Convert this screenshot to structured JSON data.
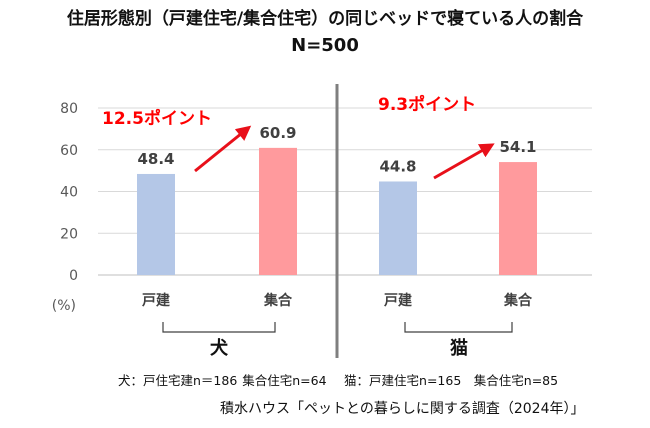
{
  "title_line1": "住居形態別（戸建住宅/集合住宅）の同じベッドで寝ている人の割合",
  "title_line2": "N=500",
  "chart_data": {
    "type": "bar",
    "ylim": [
      0,
      80
    ],
    "yticks": [
      0,
      20,
      40,
      60,
      80
    ],
    "yunit": "(%)",
    "grid": true,
    "panels": [
      {
        "group_label": "犬",
        "categories": [
          "戸建",
          "集合"
        ],
        "values": [
          48.4,
          60.9
        ],
        "value_labels": [
          "48.4",
          "60.9"
        ],
        "colors": [
          "#b4c7e7",
          "#ff9a9d"
        ],
        "annotation": "12.5ポイント"
      },
      {
        "group_label": "猫",
        "categories": [
          "戸建",
          "集合"
        ],
        "values": [
          44.8,
          54.1
        ],
        "value_labels": [
          "44.8",
          "54.1"
        ],
        "colors": [
          "#b4c7e7",
          "#ff9a9d"
        ],
        "annotation": "9.3ポイント"
      }
    ]
  },
  "colors": {
    "annotation": "#ff0000",
    "arrow": "#e8101a",
    "grid": "#d9d9d9",
    "divider": "#7f7f7f",
    "axis_text": "#595959"
  },
  "sample_note": "犬：戸住宅建n＝186 集合住宅n=64　 猫：戸建住宅n=165　集合住宅n=85",
  "source_note": "積水ハウス「ペットとの暮らしに関する調査（2024年）」"
}
